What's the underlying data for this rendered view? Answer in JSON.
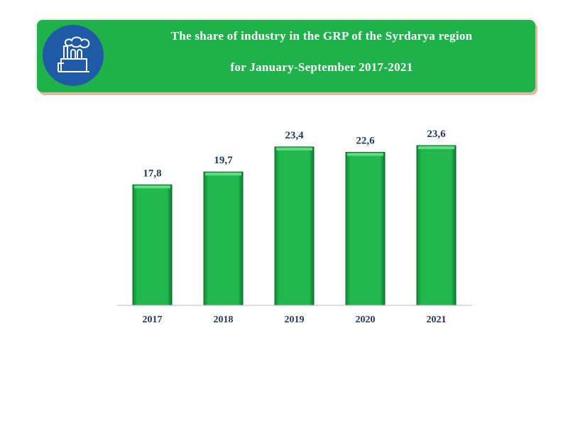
{
  "header": {
    "title_line1": "The share of industry in the GRP of the Syrdarya region",
    "title_line2": "for January-September 2017-2021",
    "icon": "factory-icon"
  },
  "chart_data": {
    "type": "bar",
    "title": "The share of industry in the GRP of the Syrdarya region for January-September 2017-2021",
    "categories": [
      "2017",
      "2018",
      "2019",
      "2020",
      "2021"
    ],
    "values": [
      17.8,
      19.7,
      23.4,
      22.6,
      23.6
    ],
    "labels": [
      "17,8",
      "19,7",
      "23,4",
      "22,6",
      "23,6"
    ],
    "ylim": [
      0,
      25
    ],
    "grid": false,
    "xlabel": "",
    "ylabel": "",
    "colors": {
      "bar": "#1fb24a",
      "label": "#1f3864"
    }
  }
}
